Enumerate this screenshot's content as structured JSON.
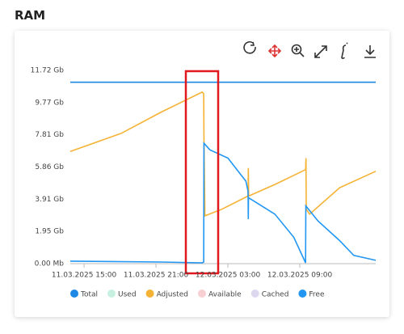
{
  "panel_title": "RAM",
  "chart_data": {
    "type": "line",
    "grid": false,
    "xlim": [
      "2025-03-11 13:51",
      "2025-03-12 15:20"
    ],
    "xticks": [
      {
        "value": "2025-03-11 15:00",
        "label": "11.03.2025 15:00"
      },
      {
        "value": "2025-03-11 21:00",
        "label": "11.03.2025 21:00"
      },
      {
        "value": "2025-03-12 03:00",
        "label": "12.03.2025 03:00"
      },
      {
        "value": "2025-03-12 09:00",
        "label": "12.03.2025 09:00"
      }
    ],
    "ylim": [
      0,
      11.72
    ],
    "yticks": [
      {
        "value": 0,
        "label": "0.00 Mb"
      },
      {
        "value": 1.95,
        "label": "1.95 Gb"
      },
      {
        "value": 3.91,
        "label": "3.91 Gb"
      },
      {
        "value": 5.86,
        "label": "5.86 Gb"
      },
      {
        "value": 7.81,
        "label": "7.81 Gb"
      },
      {
        "value": 9.77,
        "label": "9.77 Gb"
      },
      {
        "value": 11.72,
        "label": "11.72 Gb"
      }
    ],
    "series": [
      {
        "name": "Total",
        "color": "#1e88e5",
        "visible": true,
        "x": [
          "2025-03-11 13:51",
          "2025-03-12 15:20"
        ],
        "values": [
          11.0,
          11.0
        ]
      },
      {
        "name": "Used",
        "color": "#c8f0e0",
        "visible": false,
        "x": [],
        "values": []
      },
      {
        "name": "Adjusted",
        "color": "#f5b335",
        "visible": true,
        "x": [
          "2025-03-11 13:51",
          "2025-03-11 18:06",
          "2025-03-11 21:28",
          "2025-03-12 00:51",
          "2025-03-12 00:59",
          "2025-03-12 01:00",
          "2025-03-12 01:05",
          "2025-03-12 02:30",
          "2025-03-12 04:41",
          "2025-03-12 04:42",
          "2025-03-12 04:44",
          "2025-03-12 06:55",
          "2025-03-12 09:29",
          "2025-03-12 09:31",
          "2025-03-12 09:32",
          "2025-03-12 09:49",
          "2025-03-12 12:19",
          "2025-03-12 15:20"
        ],
        "values": [
          6.8,
          7.9,
          9.2,
          10.4,
          10.3,
          7.8,
          2.9,
          3.3,
          4.1,
          5.8,
          4.1,
          4.8,
          5.7,
          6.4,
          3.3,
          3.0,
          4.6,
          5.6
        ]
      },
      {
        "name": "Available",
        "color": "#f8d0d4",
        "visible": false,
        "x": [],
        "values": []
      },
      {
        "name": "Cached",
        "color": "#ddd8f0",
        "visible": false,
        "x": [],
        "values": []
      },
      {
        "name": "Free",
        "color": "#2196f3",
        "visible": true,
        "x": [
          "2025-03-11 13:51",
          "2025-03-11 21:28",
          "2025-03-12 00:51",
          "2025-03-12 00:59",
          "2025-03-12 01:00",
          "2025-03-12 01:30",
          "2025-03-12 03:00",
          "2025-03-12 04:30",
          "2025-03-12 04:41",
          "2025-03-12 04:42",
          "2025-03-12 04:43",
          "2025-03-12 06:55",
          "2025-03-12 08:30",
          "2025-03-12 09:29",
          "2025-03-12 09:30",
          "2025-03-12 10:30",
          "2025-03-12 12:19",
          "2025-03-12 13:30",
          "2025-03-12 15:20"
        ],
        "values": [
          0.15,
          0.1,
          0.05,
          0.1,
          7.3,
          6.9,
          6.4,
          5.0,
          4.4,
          2.7,
          4.0,
          3.0,
          1.6,
          0.05,
          3.5,
          2.6,
          1.4,
          0.5,
          0.2
        ]
      }
    ]
  }
}
